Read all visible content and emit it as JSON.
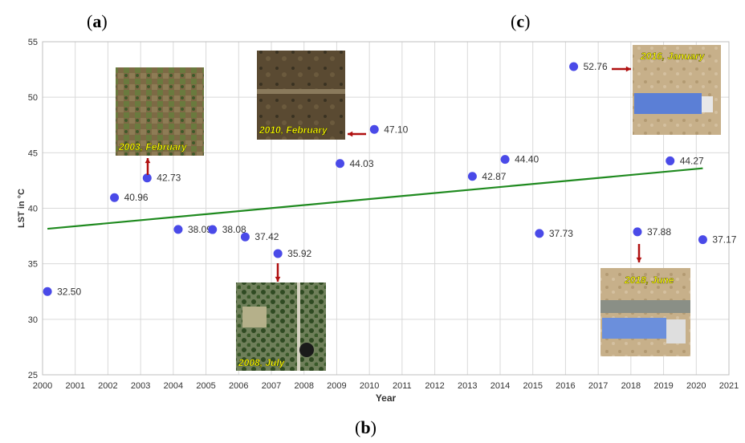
{
  "panels": {
    "a": "a",
    "b": "b",
    "c": "c"
  },
  "colors": {
    "point": "#4a4ae8",
    "trend": "#1f8a1f",
    "arrow": "#b01010",
    "grid": "#d9d9d9",
    "caption": "#ffff00"
  },
  "chart_data": {
    "type": "scatter",
    "xlabel": "Year",
    "ylabel": "LST in °C",
    "xlim": [
      2000,
      2021
    ],
    "ylim": [
      25,
      55
    ],
    "xticks": [
      "2000",
      "2001",
      "2002",
      "2003",
      "2004",
      "2005",
      "2006",
      "2007",
      "2008",
      "2009",
      "2010",
      "2011",
      "2012",
      "2013",
      "2014",
      "2015",
      "2016",
      "2017",
      "2018",
      "2019",
      "2020",
      "2021"
    ],
    "yticks": [
      "25",
      "30",
      "35",
      "40",
      "45",
      "50",
      "55"
    ],
    "grid": true,
    "points": [
      {
        "x": 2000.15,
        "y": 32.5,
        "label": "32.50"
      },
      {
        "x": 2002.2,
        "y": 40.96,
        "label": "40.96"
      },
      {
        "x": 2003.2,
        "y": 42.73,
        "label": "42.73"
      },
      {
        "x": 2004.15,
        "y": 38.09,
        "label": "38.09"
      },
      {
        "x": 2005.2,
        "y": 38.08,
        "label": "38.08"
      },
      {
        "x": 2006.2,
        "y": 37.42,
        "label": "37.42"
      },
      {
        "x": 2007.2,
        "y": 35.92,
        "label": "35.92"
      },
      {
        "x": 2009.1,
        "y": 44.03,
        "label": "44.03"
      },
      {
        "x": 2010.15,
        "y": 47.1,
        "label": "47.10"
      },
      {
        "x": 2013.15,
        "y": 42.87,
        "label": "42.87"
      },
      {
        "x": 2014.15,
        "y": 44.4,
        "label": "44.40"
      },
      {
        "x": 2015.2,
        "y": 37.73,
        "label": "37.73"
      },
      {
        "x": 2016.25,
        "y": 52.76,
        "label": "52.76"
      },
      {
        "x": 2018.2,
        "y": 37.88,
        "label": "37.88"
      },
      {
        "x": 2019.2,
        "y": 44.27,
        "label": "44.27"
      },
      {
        "x": 2020.2,
        "y": 37.17,
        "label": "37.17"
      }
    ],
    "trendline": {
      "x": [
        2000.15,
        2020.2
      ],
      "y": [
        38.15,
        43.6
      ]
    },
    "annotations": [
      {
        "text": "2003, February"
      },
      {
        "text": "2010, February"
      },
      {
        "text": "2008, July"
      },
      {
        "text": "2016, January"
      },
      {
        "text": "2018, June"
      }
    ]
  }
}
